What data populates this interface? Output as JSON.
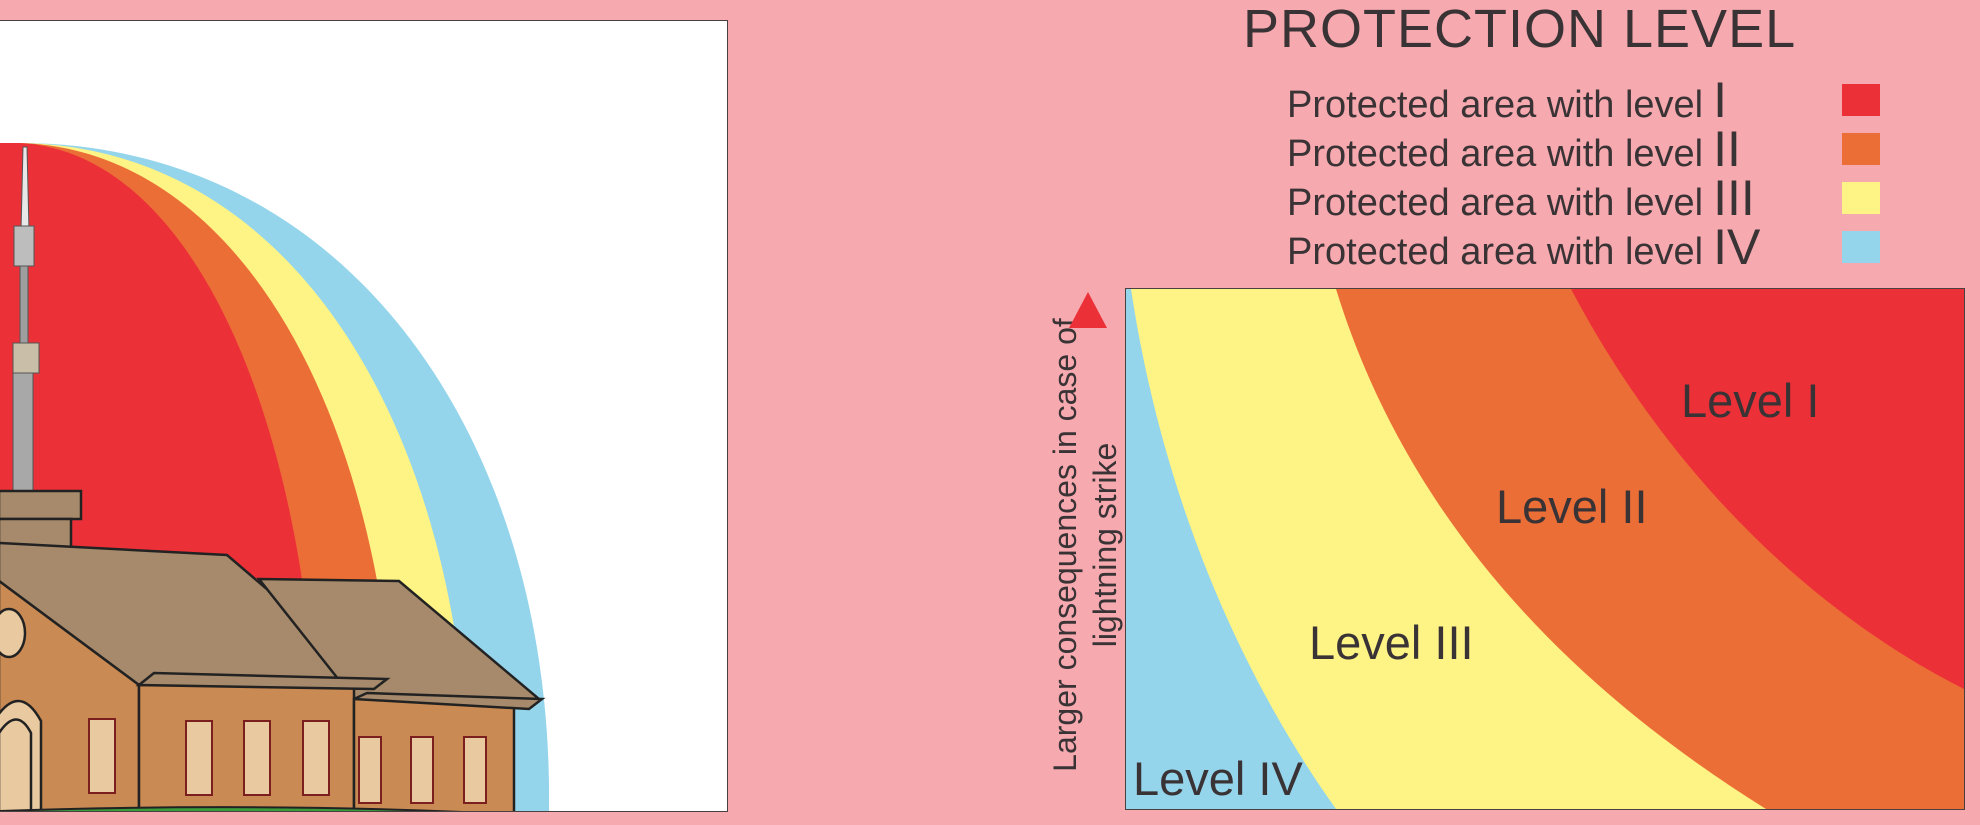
{
  "title": "PROTECTION LEVEL",
  "legend": {
    "items": [
      {
        "text": "Protected area with level",
        "numeral": "I",
        "color": "#ec3037"
      },
      {
        "text": "Protected area with level",
        "numeral": "II",
        "color": "#ec6e37"
      },
      {
        "text": "Protected area with level",
        "numeral": "III",
        "color": "#fef385"
      },
      {
        "text": "Protected area with level",
        "numeral": "IV",
        "color": "#94d5ec"
      }
    ]
  },
  "chart": {
    "y_axis_label": "Larger consequences in case of lightning strike",
    "zones": [
      {
        "label": "Level I",
        "color": "#ec3037"
      },
      {
        "label": "Level II",
        "color": "#ec6e37"
      },
      {
        "label": "Level III",
        "color": "#fef385"
      },
      {
        "label": "Level IV",
        "color": "#94d5ec"
      }
    ],
    "arrow_color": "#ec3037"
  },
  "illustration": {
    "subject": "building-with-lightning-rod",
    "colors": {
      "roof": "#a68a6b",
      "wall": "#c98a53",
      "window": "#e8c9a0",
      "rod": "#a8a8a8",
      "grass": "#3a9c3a"
    }
  }
}
